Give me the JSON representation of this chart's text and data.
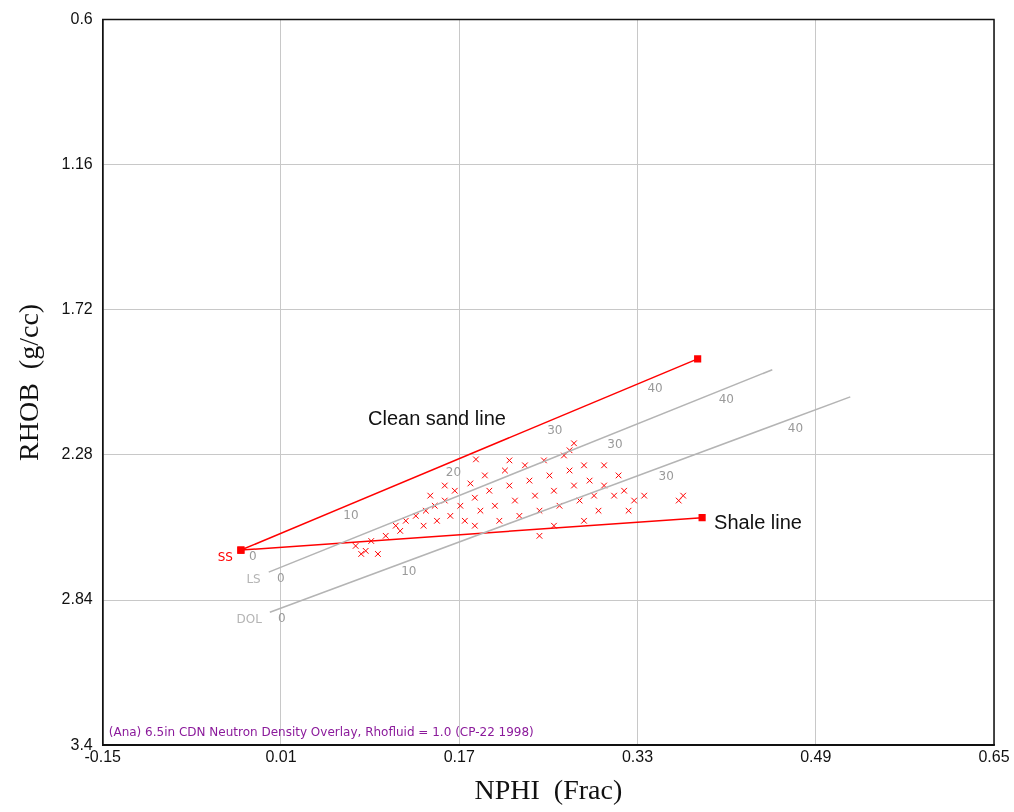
{
  "chart_data": {
    "type": "scatter",
    "xlabel": "NPHI  (Frac)",
    "ylabel": "RHOB  (g/cc)",
    "xlim": [
      -0.15,
      0.65
    ],
    "xticks": [
      -0.15,
      0.01,
      0.17,
      0.33,
      0.49,
      0.65
    ],
    "ylim": [
      3.4,
      0.6
    ],
    "yticks": [
      0.6,
      1.16,
      1.72,
      2.28,
      2.84,
      3.4
    ],
    "grid": true,
    "legend": false,
    "marker": "cross",
    "series": [
      {
        "type": "line",
        "name": "LS",
        "color": "#b4b4b4",
        "marker": "none",
        "x": [
          -0.001,
          0.451
        ],
        "values": [
          2.732,
          1.951
        ]
      },
      {
        "type": "line",
        "name": "DOL",
        "color": "#b4b4b4",
        "marker": "none",
        "x": [
          0.0,
          0.521
        ],
        "values": [
          2.887,
          2.056
        ]
      },
      {
        "color": "#ff0000",
        "x": [
          0.077,
          0.082,
          0.086,
          0.097,
          0.091,
          0.104,
          0.113,
          0.122,
          0.117,
          0.131,
          0.14,
          0.138,
          0.148,
          0.15,
          0.157,
          0.162,
          0.166,
          0.171,
          0.175,
          0.18,
          0.184,
          0.189,
          0.193,
          0.197,
          0.202,
          0.206,
          0.211,
          0.215,
          0.22,
          0.224,
          0.229,
          0.233,
          0.238,
          0.242,
          0.246,
          0.251,
          0.255,
          0.26,
          0.264,
          0.269,
          0.273,
          0.278,
          0.282,
          0.287,
          0.291,
          0.295,
          0.3,
          0.309,
          0.318,
          0.327,
          0.336,
          0.322,
          0.367,
          0.371,
          0.185,
          0.273,
          0.269,
          0.242,
          0.3,
          0.313,
          0.215,
          0.184,
          0.255,
          0.282,
          0.144,
          0.157
        ],
        "values": [
          2.631,
          2.662,
          2.65,
          2.662,
          2.612,
          2.592,
          2.553,
          2.534,
          2.573,
          2.515,
          2.495,
          2.553,
          2.476,
          2.534,
          2.456,
          2.515,
          2.418,
          2.476,
          2.534,
          2.39,
          2.445,
          2.495,
          2.359,
          2.418,
          2.476,
          2.534,
          2.34,
          2.398,
          2.456,
          2.515,
          2.32,
          2.379,
          2.437,
          2.495,
          2.301,
          2.359,
          2.418,
          2.476,
          2.282,
          2.34,
          2.398,
          2.456,
          2.32,
          2.379,
          2.437,
          2.495,
          2.398,
          2.437,
          2.418,
          2.456,
          2.437,
          2.495,
          2.456,
          2.437,
          2.297,
          2.235,
          2.262,
          2.592,
          2.32,
          2.359,
          2.301,
          2.553,
          2.553,
          2.534,
          2.437,
          2.398
        ]
      },
      {
        "type": "line",
        "name": "SS",
        "color": "#ff0000",
        "marker": "square",
        "x": [
          -0.026,
          0.384
        ],
        "values": [
          2.647,
          1.909
        ]
      },
      {
        "type": "line",
        "color": "#ff0000",
        "marker": "square",
        "x": [
          -0.026,
          0.388
        ],
        "values": [
          2.647,
          2.522
        ]
      }
    ],
    "annotations": [
      {
        "text": "Clean sand line",
        "x": 0.15,
        "y": 2.33
      },
      {
        "text": "Shale line",
        "x": 0.388,
        "y": 2.522
      },
      {
        "text": "0",
        "x": -0.026,
        "y": 2.647
      },
      {
        "text": "10",
        "x": 0.062,
        "y": 2.489
      },
      {
        "text": "20",
        "x": 0.154,
        "y": 2.323
      },
      {
        "text": "30",
        "x": 0.245,
        "y": 2.159
      },
      {
        "text": "40",
        "x": 0.335,
        "y": 1.997
      },
      {
        "text": "0",
        "x": -0.001,
        "y": 2.732
      },
      {
        "text": "30",
        "x": 0.299,
        "y": 2.214
      },
      {
        "text": "40",
        "x": 0.399,
        "y": 2.041
      },
      {
        "text": "0",
        "x": 0.0,
        "y": 2.887
      },
      {
        "text": "10",
        "x": 0.114,
        "y": 2.705
      },
      {
        "text": "30",
        "x": 0.345,
        "y": 2.337
      },
      {
        "text": "40",
        "x": 0.461,
        "y": 2.152
      },
      "(Ana) 6.5in CDN Neutron Density Overlay, Rhofluid = 1.0 (CP-22 1998)"
    ]
  }
}
